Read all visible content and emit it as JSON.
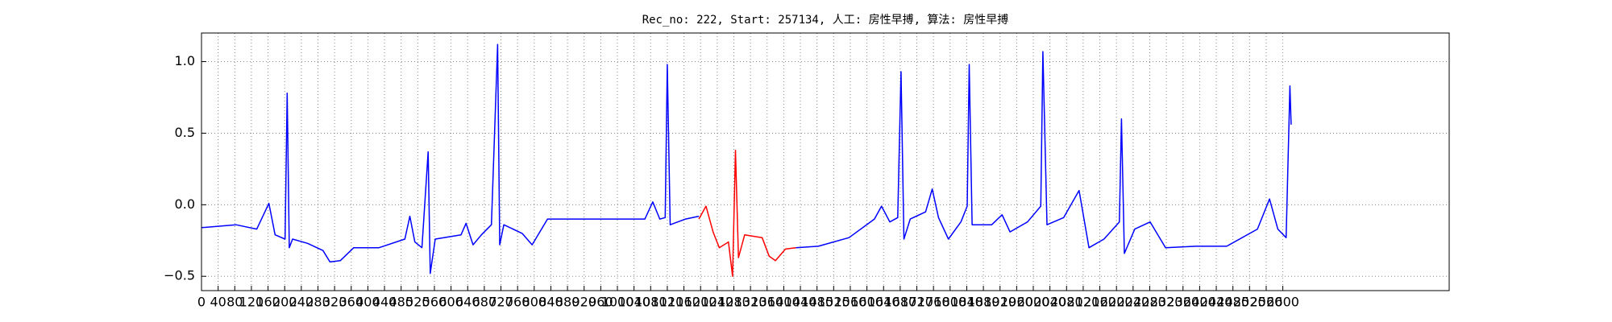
{
  "chart_data": {
    "type": "line",
    "title": "Rec_no: 222, Start: 257134, 人工: 房性早搏, 算法: 房性早搏",
    "xlim": [
      0,
      3000
    ],
    "ylim": [
      -0.6,
      1.2
    ],
    "xticks": [
      0,
      40,
      80,
      120,
      160,
      200,
      240,
      280,
      320,
      360,
      400,
      440,
      480,
      520,
      560,
      600,
      640,
      680,
      720,
      760,
      800,
      840,
      880,
      920,
      960,
      1000,
      1040,
      1080,
      1120,
      1160,
      1200,
      1240,
      1280,
      1320,
      1360,
      1400,
      1440,
      1480,
      1520,
      1560,
      1600,
      1640,
      1680,
      1720,
      1760,
      1800,
      1840,
      1880,
      1920,
      1960,
      2000,
      2040,
      2080,
      2120,
      2160,
      2200,
      2240,
      2280,
      2320,
      2360,
      2400,
      2440,
      2480,
      2520,
      2560,
      2600
    ],
    "yticks": [
      {
        "value": -0.5,
        "label": "−0.5"
      },
      {
        "value": 0,
        "label": "0.0"
      },
      0.5,
      {
        "value": 1,
        "label": "1.0"
      }
    ],
    "grid": true,
    "series": [
      {
        "color": "#0000ff",
        "x": [
          0,
          83,
          133,
          162,
          177,
          201,
          206,
          211,
          219,
          255,
          292,
          309,
          334,
          366,
          427,
          489,
          501,
          513,
          530,
          545,
          550,
          562,
          624,
          636,
          653,
          673,
          697,
          712,
          717,
          727,
          771,
          795,
          832,
          894,
          992,
          1066,
          1085,
          1102,
          1115,
          1120,
          1127,
          1164,
          1196,
          null,
          1429,
          1483,
          1557,
          1618,
          1635,
          1655,
          1674,
          1682,
          1689,
          1704,
          1741,
          1757,
          1772,
          1796,
          1826,
          1841,
          1846,
          1853,
          1900,
          1925,
          1944,
          1986,
          2018,
          2023,
          2033,
          2073,
          2110,
          2134,
          2170,
          2207,
          2212,
          2219,
          2244,
          2281,
          2318,
          2391,
          2465,
          2539,
          2568,
          2588,
          2608,
          2617,
          2620
        ],
        "values": [
          -0.16,
          -0.14,
          -0.17,
          0.01,
          -0.21,
          -0.24,
          0.78,
          -0.3,
          -0.24,
          -0.27,
          -0.32,
          -0.4,
          -0.39,
          -0.3,
          -0.3,
          -0.24,
          -0.08,
          -0.26,
          -0.3,
          0.37,
          -0.48,
          -0.24,
          -0.21,
          -0.13,
          -0.28,
          -0.21,
          -0.14,
          1.12,
          -0.28,
          -0.14,
          -0.2,
          -0.28,
          -0.1,
          -0.1,
          -0.1,
          -0.1,
          0.02,
          -0.1,
          -0.09,
          0.98,
          -0.14,
          -0.1,
          -0.08,
          null,
          -0.3,
          -0.29,
          -0.23,
          -0.1,
          -0.01,
          -0.12,
          -0.09,
          0.93,
          -0.24,
          -0.1,
          -0.05,
          0.11,
          -0.09,
          -0.24,
          -0.12,
          -0.01,
          0.98,
          -0.14,
          -0.14,
          -0.07,
          -0.19,
          -0.12,
          -0.01,
          1.07,
          -0.14,
          -0.09,
          0.1,
          -0.3,
          -0.24,
          -0.12,
          0.6,
          -0.34,
          -0.17,
          -0.12,
          -0.3,
          -0.29,
          -0.29,
          -0.17,
          0.04,
          -0.17,
          -0.23,
          0.83,
          0.56
        ]
      },
      {
        "color": "#ff0000",
        "x": [
          1196,
          1213,
          1230,
          1245,
          1267,
          1277,
          1284,
          1291,
          1306,
          1348,
          1365,
          1380,
          1404,
          1429
        ],
        "values": [
          -0.1,
          -0.01,
          -0.19,
          -0.3,
          -0.26,
          -0.5,
          0.38,
          -0.37,
          -0.21,
          -0.23,
          -0.36,
          -0.39,
          -0.31,
          -0.3
        ]
      }
    ]
  }
}
